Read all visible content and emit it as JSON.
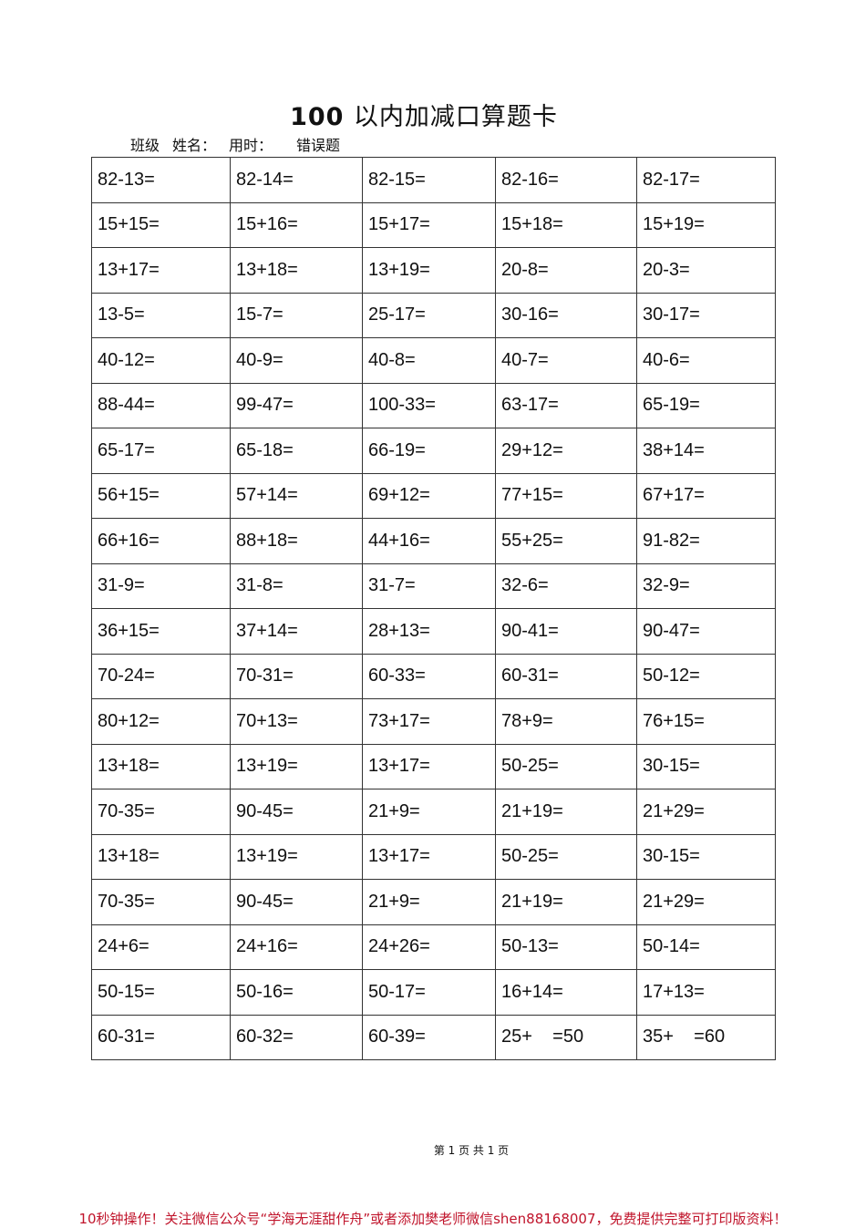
{
  "title_num": "100",
  "title_text": "以内加减口算题卡",
  "meta": {
    "class": "班级",
    "name": "姓名：",
    "time": "用时：",
    "wrong": "错误题"
  },
  "rows": [
    [
      "82-13=",
      "82-14=",
      "82-15=",
      "82-16=",
      "82-17="
    ],
    [
      "15+15=",
      "15+16=",
      "15+17=",
      "15+18=",
      "15+19="
    ],
    [
      "13+17=",
      "13+18=",
      "13+19=",
      "20-8=",
      "20-3="
    ],
    [
      "13-5=",
      "15-7=",
      "25-17=",
      "30-16=",
      "30-17="
    ],
    [
      "40-12=",
      "40-9=",
      "40-8=",
      "40-7=",
      "40-6="
    ],
    [
      "88-44=",
      "99-47=",
      "100-33=",
      "63-17=",
      "65-19="
    ],
    [
      "65-17=",
      "65-18=",
      "66-19=",
      "29+12=",
      "38+14="
    ],
    [
      "56+15=",
      "57+14=",
      "69+12=",
      "77+15=",
      "67+17="
    ],
    [
      "66+16=",
      "88+18=",
      "44+16=",
      "55+25=",
      "91-82="
    ],
    [
      "31-9=",
      "31-8=",
      "31-7=",
      "32-6=",
      "32-9="
    ],
    [
      "36+15=",
      "37+14=",
      "28+13=",
      "90-41=",
      "90-47="
    ],
    [
      "70-24=",
      "70-31=",
      "60-33=",
      "60-31=",
      "50-12="
    ],
    [
      "80+12=",
      "70+13=",
      "73+17=",
      "78+9=",
      "76+15="
    ],
    [
      "13+18=",
      "13+19=",
      "13+17=",
      "50-25=",
      "30-15="
    ],
    [
      "70-35=",
      "90-45=",
      "21+9=",
      "21+19=",
      "21+29="
    ],
    [
      "13+18=",
      "13+19=",
      "13+17=",
      "50-25=",
      "30-15="
    ],
    [
      "70-35=",
      "90-45=",
      "21+9=",
      "21+19=",
      "21+29="
    ],
    [
      "24+6=",
      "24+16=",
      "24+26=",
      "50-13=",
      "50-14="
    ],
    [
      "50-15=",
      "50-16=",
      "50-17=",
      "16+14=",
      "17+13="
    ],
    [
      "60-31=",
      "60-32=",
      "60-39=",
      "25+    =50",
      "35+    =60"
    ]
  ],
  "pager": "第 1 页 共 1 页",
  "promo": "10秒钟操作！关注微信公众号“学海无涯甜作舟”或者添加樊老师微信shen88168007，免费提供完整可打印版资料！",
  "promo_color": "#c0142b"
}
